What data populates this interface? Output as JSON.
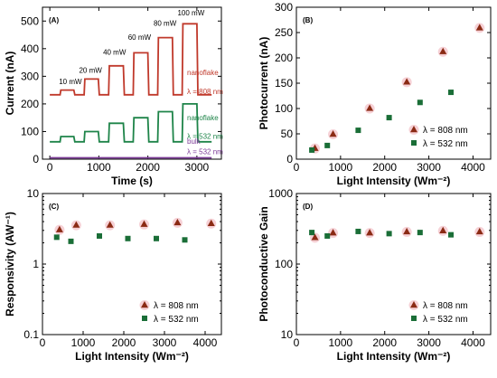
{
  "chart_data": [
    {
      "panel": "(A)",
      "type": "line",
      "xlabel": "Time (s)",
      "ylabel": "Current (nA)",
      "xlim": [
        -150,
        3500
      ],
      "ylim": [
        0,
        550
      ],
      "xticks": [
        0,
        1000,
        2000,
        3000
      ],
      "yticks": [
        0,
        100,
        200,
        300,
        400,
        500
      ],
      "power_labels": [
        {
          "text": "10 mW",
          "x": 420,
          "y": 272
        },
        {
          "text": "20 mW",
          "x": 830,
          "y": 313
        },
        {
          "text": "40 mW",
          "x": 1320,
          "y": 378
        },
        {
          "text": "60 mW",
          "x": 1830,
          "y": 432
        },
        {
          "text": "80 mW",
          "x": 2350,
          "y": 483
        },
        {
          "text": "100 mW",
          "x": 2880,
          "y": 520
        }
      ],
      "cycles": [
        {
          "on": [
            210,
            490
          ],
          "nano808": 250,
          "nano532": 82
        },
        {
          "on": [
            700,
            990
          ],
          "nano808": 290,
          "nano532": 100
        },
        {
          "on": [
            1200,
            1500
          ],
          "nano808": 338,
          "nano532": 130
        },
        {
          "on": [
            1700,
            2000
          ],
          "nano808": 385,
          "nano532": 150
        },
        {
          "on": [
            2200,
            2500
          ],
          "nano808": 440,
          "nano532": 172
        },
        {
          "on": [
            2700,
            3000
          ],
          "nano808": 490,
          "nano532": 200
        }
      ],
      "baselines": {
        "nano808": 233,
        "nano532": 63,
        "bulk": 5
      },
      "x_end": 3300,
      "series": [
        {
          "name": "nanoflake",
          "lambda": "λ = 808 nm",
          "color": "#c0392b",
          "key": "nano808"
        },
        {
          "name": "nanoflake",
          "lambda": "λ = 532 nm",
          "color": "#1e8449",
          "key": "nano532"
        },
        {
          "name": "bulk",
          "lambda": "λ = 532 nm",
          "color": "#7d3c98",
          "key": "bulk"
        }
      ]
    },
    {
      "panel": "(B)",
      "type": "scatter",
      "xlabel": "Light Intensity (Wm⁻²)",
      "ylabel": "Photocurrent (nA)",
      "xlim": [
        0,
        4400
      ],
      "ylim": [
        0,
        300
      ],
      "xticks": [
        0,
        1000,
        2000,
        3000,
        4000
      ],
      "yticks": [
        0,
        50,
        100,
        150,
        200,
        250,
        300
      ],
      "legend": "bottom-right",
      "series": [
        {
          "name": "λ = 808 nm",
          "marker": "triangle",
          "color": "#8b2a14",
          "x": [
            420,
            830,
            1660,
            2500,
            3320,
            4150
          ],
          "y": [
            22,
            50,
            101,
            153,
            213,
            260
          ]
        },
        {
          "name": "λ = 532 nm",
          "marker": "square",
          "color": "#1a6e37",
          "x": [
            350,
            700,
            1400,
            2100,
            2800,
            3500
          ],
          "y": [
            18,
            27,
            57,
            82,
            112,
            132
          ]
        }
      ]
    },
    {
      "panel": "(C)",
      "type": "scatter",
      "xlabel": "Light Intensity (Wm⁻²)",
      "ylabel": "Responsivity (AW⁻¹)",
      "yscale": "log",
      "xlim": [
        0,
        4400
      ],
      "ylim": [
        0.1,
        10
      ],
      "xticks": [
        0,
        1000,
        2000,
        3000,
        4000
      ],
      "yticks": [
        0.1,
        1,
        10
      ],
      "ytick_labels": [
        "0.1",
        "1",
        "10"
      ],
      "legend": "bottom-right",
      "series": [
        {
          "name": "λ = 808 nm",
          "marker": "triangle",
          "color": "#8b2a14",
          "x": [
            420,
            830,
            1660,
            2500,
            3320,
            4150
          ],
          "y": [
            3.1,
            3.6,
            3.6,
            3.7,
            3.9,
            3.8
          ]
        },
        {
          "name": "λ = 532 nm",
          "marker": "square",
          "color": "#1a6e37",
          "x": [
            350,
            700,
            1400,
            2100,
            2800,
            3500
          ],
          "y": [
            2.4,
            2.1,
            2.5,
            2.3,
            2.3,
            2.2
          ]
        }
      ]
    },
    {
      "panel": "(D)",
      "type": "scatter",
      "xlabel": "Light Intensity (Wm⁻²)",
      "ylabel": "Photoconductive Gain",
      "yscale": "log",
      "xlim": [
        0,
        4400
      ],
      "ylim": [
        10,
        1000
      ],
      "xticks": [
        0,
        1000,
        2000,
        3000,
        4000
      ],
      "yticks": [
        10,
        100,
        1000
      ],
      "ytick_labels": [
        "10",
        "100",
        "1000"
      ],
      "legend": "bottom-right",
      "series": [
        {
          "name": "λ = 808 nm",
          "marker": "triangle",
          "color": "#8b2a14",
          "x": [
            420,
            830,
            1660,
            2500,
            3320,
            4150
          ],
          "y": [
            240,
            280,
            280,
            290,
            300,
            290
          ]
        },
        {
          "name": "λ = 532 nm",
          "marker": "square",
          "color": "#1a6e37",
          "x": [
            350,
            700,
            1400,
            2100,
            2800,
            3500
          ],
          "y": [
            280,
            250,
            290,
            270,
            280,
            260
          ]
        }
      ]
    }
  ]
}
